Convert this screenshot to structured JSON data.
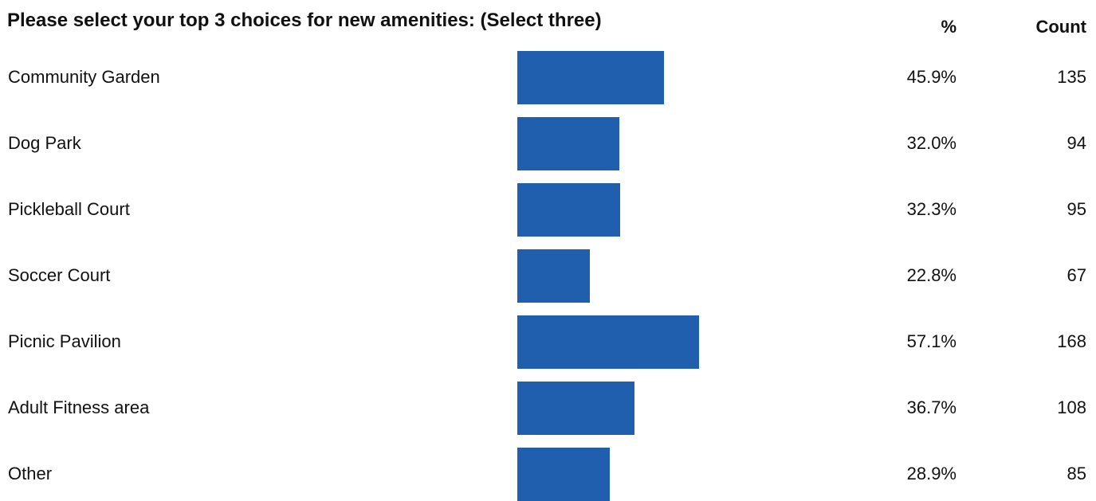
{
  "chart_data": {
    "type": "bar",
    "orientation": "horizontal",
    "title": "Please select your top 3 choices for new amenities: (Select three)",
    "columns": {
      "percent_header": "%",
      "count_header": "Count"
    },
    "categories": [
      "Community Garden",
      "Dog Park",
      "Pickleball Court",
      "Soccer Court",
      "Picnic Pavilion",
      "Adult Fitness area",
      "Other"
    ],
    "values": [
      45.9,
      32.0,
      32.3,
      22.8,
      57.1,
      36.7,
      28.9
    ],
    "percent_labels": [
      "45.9%",
      "32.0%",
      "32.3%",
      "22.8%",
      "57.1%",
      "36.7%",
      "28.9%"
    ],
    "counts": [
      "135",
      "94",
      "95",
      "67",
      "168",
      "108",
      "85"
    ],
    "bar_color": "#1f5fad",
    "grid": false
  }
}
